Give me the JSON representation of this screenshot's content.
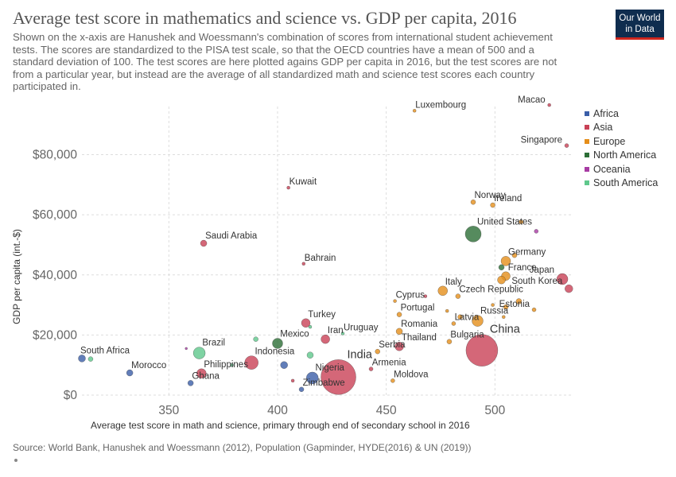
{
  "title": "Average test score in mathematics and science vs. GDP per capita, 2016",
  "subtitle": "Shown on the x-axis are Hanushek and Woessmann's combination of scores from international student achievement tests. The scores are standardized to the PISA test scale, so that the OECD countries have a mean of 500 and a standard deviation of 100. The test scores are here plotted agains GDP per capita in 2016, but the test scores are not from a particular year, but instead are the average of all standardized math and science test scores each country participated in.",
  "logo": {
    "line1": "Our World",
    "line2": "in Data"
  },
  "source": "Source: World Bank, Hanushek and Woessmann (2012), Population (Gapminder, HYDE(2016) & UN (2019))",
  "chart_data": {
    "type": "scatter",
    "title": "Average test score in mathematics and science vs. GDP per capita, 2016",
    "xlabel": "Average test score in math and science, primary through end of secondary school in 2016",
    "ylabel": "GDP per capita (int.-$)",
    "xlim": [
      310,
      535
    ],
    "ylim": [
      0,
      96000
    ],
    "x_ticks": [
      350,
      400,
      450,
      500
    ],
    "y_ticks": [
      0,
      20000,
      40000,
      60000,
      80000
    ],
    "y_tick_labels": [
      "$0",
      "$20,000",
      "$40,000",
      "$60,000",
      "$80,000"
    ],
    "grid": true,
    "size_variable": "population",
    "legend_position": "right",
    "legend": [
      {
        "name": "Africa",
        "color": "#3b5ea8"
      },
      {
        "name": "Asia",
        "color": "#c94156"
      },
      {
        "name": "Europe",
        "color": "#e58e1a"
      },
      {
        "name": "North America",
        "color": "#2c6e36"
      },
      {
        "name": "Oceania",
        "color": "#a73ba3"
      },
      {
        "name": "South America",
        "color": "#5fc88c"
      }
    ],
    "points": [
      {
        "label": "South Africa",
        "x": 310,
        "y": 12200,
        "continent": "Africa",
        "size": 4.5
      },
      {
        "label": "",
        "x": 314,
        "y": 12000,
        "continent": "South America",
        "size": 3
      },
      {
        "label": "Morocco",
        "x": 332,
        "y": 7400,
        "continent": "Africa",
        "size": 4
      },
      {
        "label": "",
        "x": 358,
        "y": 15500,
        "continent": "Oceania",
        "size": 1.5
      },
      {
        "label": "Brazil",
        "x": 364,
        "y": 14000,
        "continent": "South America",
        "size": 7.5
      },
      {
        "label": "Philippines",
        "x": 365,
        "y": 7200,
        "continent": "Asia",
        "size": 6
      },
      {
        "label": "Ghana",
        "x": 360,
        "y": 4000,
        "continent": "Africa",
        "size": 3.5
      },
      {
        "label": "",
        "x": 379,
        "y": 10000,
        "continent": "South America",
        "size": 2
      },
      {
        "label": "Indonesia",
        "x": 388,
        "y": 10800,
        "continent": "Asia",
        "size": 8.5
      },
      {
        "label": "",
        "x": 390,
        "y": 18600,
        "continent": "South America",
        "size": 3
      },
      {
        "label": "Mexico",
        "x": 400,
        "y": 17200,
        "continent": "North America",
        "size": 6.5
      },
      {
        "label": "",
        "x": 403,
        "y": 10000,
        "continent": "Africa",
        "size": 4.5
      },
      {
        "label": "",
        "x": 407,
        "y": 4800,
        "continent": "Asia",
        "size": 2
      },
      {
        "label": "Kuwait",
        "x": 405,
        "y": 69000,
        "continent": "Asia",
        "size": 2
      },
      {
        "label": "Saudi Arabia",
        "x": 366,
        "y": 50500,
        "continent": "Asia",
        "size": 4
      },
      {
        "label": "Bahrain",
        "x": 412,
        "y": 43700,
        "continent": "Asia",
        "size": 2
      },
      {
        "label": "Turkey",
        "x": 413,
        "y": 24000,
        "continent": "Asia",
        "size": 5.5
      },
      {
        "label": "",
        "x": 415,
        "y": 22700,
        "continent": "South America",
        "size": 2
      },
      {
        "label": "",
        "x": 415,
        "y": 13300,
        "continent": "South America",
        "size": 4
      },
      {
        "label": "Nigeria",
        "x": 416,
        "y": 5700,
        "continent": "Africa",
        "size": 7.5
      },
      {
        "label": "Zimbabwe",
        "x": 411,
        "y": 1900,
        "continent": "Africa",
        "size": 3
      },
      {
        "label": "Iran",
        "x": 422,
        "y": 18600,
        "continent": "Asia",
        "size": 5.5
      },
      {
        "label": "Uruguay",
        "x": 430,
        "y": 20500,
        "continent": "South America",
        "size": 2
      },
      {
        "label": "India",
        "x": 428,
        "y": 6000,
        "continent": "Asia",
        "size": 22
      },
      {
        "label": "Armenia",
        "x": 443,
        "y": 8700,
        "continent": "Asia",
        "size": 2.5
      },
      {
        "label": "Serbia",
        "x": 446,
        "y": 14500,
        "continent": "Europe",
        "size": 3
      },
      {
        "label": "Thailand",
        "x": 456,
        "y": 16200,
        "continent": "Asia",
        "size": 5.5
      },
      {
        "label": "Moldova",
        "x": 453,
        "y": 4800,
        "continent": "Europe",
        "size": 2.5
      },
      {
        "label": "Romania",
        "x": 456,
        "y": 21200,
        "continent": "Europe",
        "size": 4
      },
      {
        "label": "Portugal",
        "x": 456,
        "y": 26800,
        "continent": "Europe",
        "size": 3
      },
      {
        "label": "Cyprus",
        "x": 454,
        "y": 31300,
        "continent": "Europe",
        "size": 2
      },
      {
        "label": "",
        "x": 468,
        "y": 32900,
        "continent": "Asia",
        "size": 2
      },
      {
        "label": "Italy",
        "x": 476,
        "y": 34700,
        "continent": "Europe",
        "size": 6
      },
      {
        "label": "Czech Republic",
        "x": 483,
        "y": 32900,
        "continent": "Europe",
        "size": 3
      },
      {
        "label": "",
        "x": 478,
        "y": 28000,
        "continent": "Europe",
        "size": 2
      },
      {
        "label": "Latvia",
        "x": 481,
        "y": 23800,
        "continent": "Europe",
        "size": 2.5
      },
      {
        "label": "",
        "x": 484,
        "y": 26000,
        "continent": "Europe",
        "size": 3
      },
      {
        "label": "Russia",
        "x": 492,
        "y": 24700,
        "continent": "Europe",
        "size": 7
      },
      {
        "label": "Bulgaria",
        "x": 479,
        "y": 17800,
        "continent": "Europe",
        "size": 3
      },
      {
        "label": "China",
        "x": 494,
        "y": 14900,
        "continent": "Asia",
        "size": 20
      },
      {
        "label": "Luxembourg",
        "x": 463,
        "y": 94600,
        "continent": "Europe",
        "size": 2
      },
      {
        "label": "Norway",
        "x": 490,
        "y": 64200,
        "continent": "Europe",
        "size": 3
      },
      {
        "label": "Ireland",
        "x": 499,
        "y": 63200,
        "continent": "Europe",
        "size": 3
      },
      {
        "label": "United States",
        "x": 490,
        "y": 53600,
        "continent": "North America",
        "size": 10
      },
      {
        "label": "",
        "x": 512,
        "y": 57600,
        "continent": "Europe",
        "size": 2.5
      },
      {
        "label": "",
        "x": 519,
        "y": 54500,
        "continent": "Oceania",
        "size": 2.5
      },
      {
        "label": "Germany",
        "x": 505,
        "y": 44600,
        "continent": "Europe",
        "size": 6
      },
      {
        "label": "",
        "x": 509,
        "y": 46500,
        "continent": "Europe",
        "size": 3
      },
      {
        "label": "",
        "x": 503,
        "y": 42500,
        "continent": "North America",
        "size": 3.5
      },
      {
        "label": "France",
        "x": 505,
        "y": 39600,
        "continent": "Europe",
        "size": 5.5
      },
      {
        "label": "",
        "x": 503,
        "y": 38300,
        "continent": "Europe",
        "size": 5
      },
      {
        "label": "Japan",
        "x": 531,
        "y": 38600,
        "continent": "Asia",
        "size": 7
      },
      {
        "label": "South Korea",
        "x": 534,
        "y": 35400,
        "continent": "Asia",
        "size": 5
      },
      {
        "label": "Estonia",
        "x": 518,
        "y": 28400,
        "continent": "Europe",
        "size": 2.5
      },
      {
        "label": "",
        "x": 511,
        "y": 31200,
        "continent": "Europe",
        "size": 3.5
      },
      {
        "label": "",
        "x": 505,
        "y": 29300,
        "continent": "Europe",
        "size": 3
      },
      {
        "label": "",
        "x": 504,
        "y": 26000,
        "continent": "Europe",
        "size": 2
      },
      {
        "label": "",
        "x": 499,
        "y": 30000,
        "continent": "Europe",
        "size": 2
      },
      {
        "label": "Macao",
        "x": 525,
        "y": 96500,
        "continent": "Asia",
        "size": 2
      },
      {
        "label": "Singapore",
        "x": 533,
        "y": 83000,
        "continent": "Asia",
        "size": 2.5
      }
    ]
  }
}
